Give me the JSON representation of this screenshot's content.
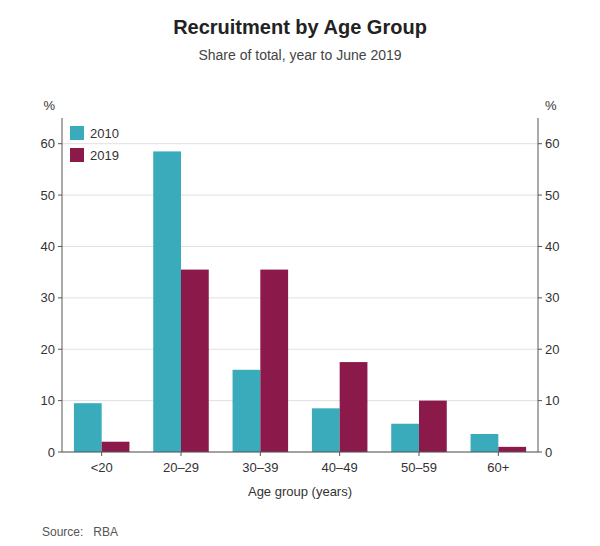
{
  "chart_data": {
    "type": "bar",
    "title": "Recruitment by Age Group",
    "subtitle": "Share of total, year to June 2019",
    "xlabel": "Age group (years)",
    "ylabel": "%",
    "y2label": "%",
    "source": "Source:   RBA",
    "categories": [
      "<20",
      "20–29",
      "30–39",
      "40–49",
      "50–59",
      "60+"
    ],
    "series": [
      {
        "name": "2010",
        "color": "#3aabbb",
        "values": [
          9.5,
          58.5,
          16.0,
          8.5,
          5.5,
          3.5
        ]
      },
      {
        "name": "2019",
        "color": "#8b1a4a",
        "values": [
          2.0,
          35.5,
          35.5,
          17.5,
          10.0,
          1.0
        ]
      }
    ],
    "ylim": [
      0,
      65
    ],
    "yticks": [
      0,
      10,
      20,
      30,
      40,
      50,
      60
    ],
    "y2lim": [
      0,
      65
    ],
    "y2ticks": [
      0,
      10,
      20,
      30,
      40,
      50,
      60
    ],
    "grid": true,
    "legend": "upper left"
  }
}
